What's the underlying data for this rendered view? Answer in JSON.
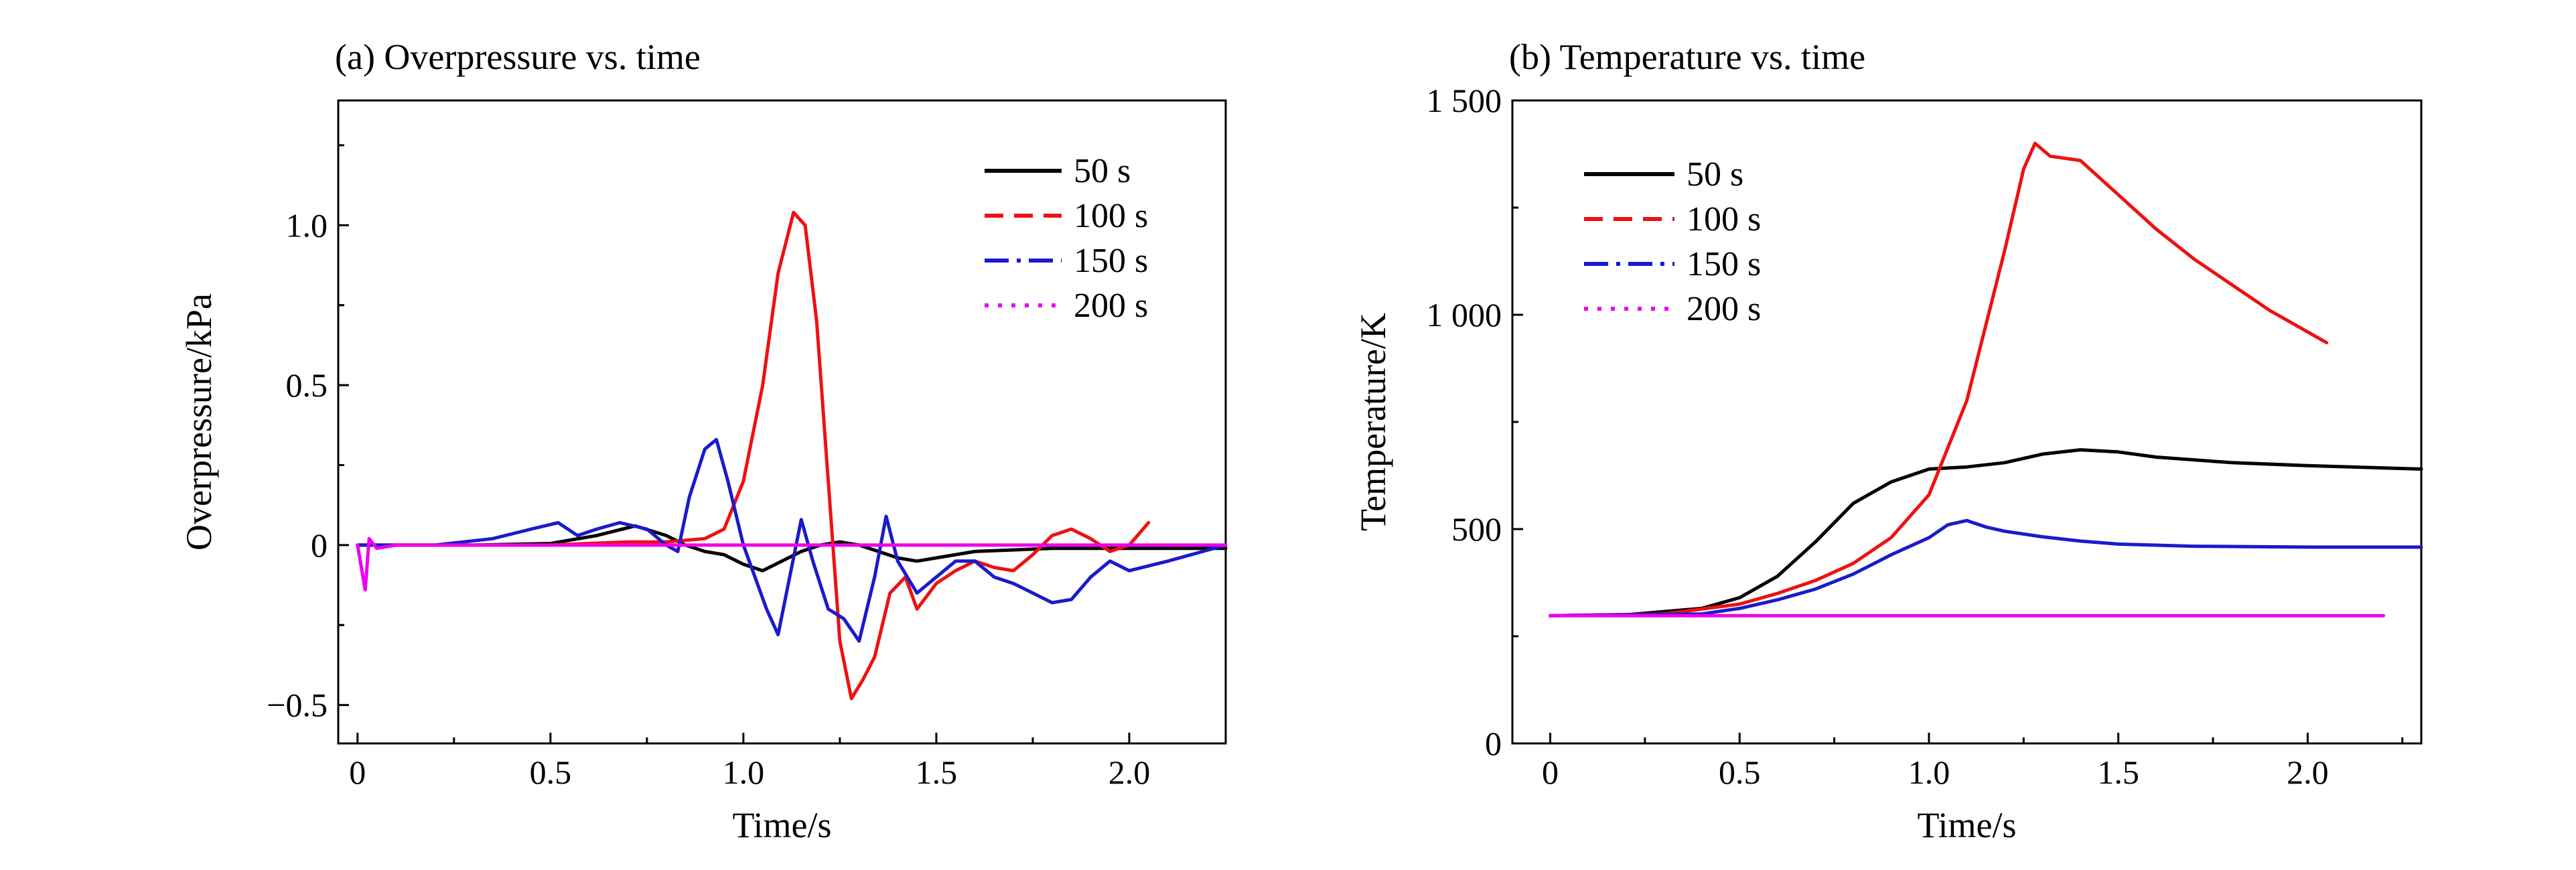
{
  "chart_data": [
    {
      "type": "line",
      "title": "(a) Overpressure vs. time",
      "xlabel": "Time/s",
      "ylabel": "Overpressure/kPa",
      "xlim": [
        -0.05,
        2.25
      ],
      "ylim": [
        -0.62,
        1.39
      ],
      "xticks": [
        0,
        0.5,
        1.0,
        1.5,
        2.0
      ],
      "xtick_labels": [
        "0",
        "0.5",
        "1.0",
        "1.5",
        "2.0"
      ],
      "yticks": [
        -0.5,
        0,
        0.5,
        1.0
      ],
      "ytick_labels": [
        "−0.5",
        "0",
        "0.5",
        "1.0"
      ],
      "legend_position": "top-right",
      "grid": false,
      "series": [
        {
          "name": "50 s",
          "color": "#000000",
          "dash": "solid",
          "points": [
            [
              0,
              0
            ],
            [
              0.3,
              0
            ],
            [
              0.5,
              0.005
            ],
            [
              0.62,
              0.03
            ],
            [
              0.72,
              0.06
            ],
            [
              0.8,
              0.03
            ],
            [
              0.85,
              0.0
            ],
            [
              0.9,
              -0.02
            ],
            [
              0.95,
              -0.03
            ],
            [
              1.0,
              -0.06
            ],
            [
              1.05,
              -0.08
            ],
            [
              1.1,
              -0.05
            ],
            [
              1.15,
              -0.02
            ],
            [
              1.2,
              0.0
            ],
            [
              1.25,
              0.01
            ],
            [
              1.3,
              0.0
            ],
            [
              1.35,
              -0.02
            ],
            [
              1.4,
              -0.04
            ],
            [
              1.45,
              -0.05
            ],
            [
              1.5,
              -0.04
            ],
            [
              1.6,
              -0.02
            ],
            [
              1.8,
              -0.01
            ],
            [
              2.0,
              -0.01
            ],
            [
              2.25,
              -0.01
            ]
          ]
        },
        {
          "name": "100 s",
          "color": "#ee1111",
          "dash": "solid",
          "points": [
            [
              0,
              0
            ],
            [
              0.5,
              0
            ],
            [
              0.7,
              0.01
            ],
            [
              0.8,
              0.01
            ],
            [
              0.9,
              0.02
            ],
            [
              0.95,
              0.05
            ],
            [
              1.0,
              0.2
            ],
            [
              1.05,
              0.5
            ],
            [
              1.09,
              0.85
            ],
            [
              1.13,
              1.04
            ],
            [
              1.16,
              1.0
            ],
            [
              1.19,
              0.7
            ],
            [
              1.22,
              0.2
            ],
            [
              1.25,
              -0.3
            ],
            [
              1.28,
              -0.48
            ],
            [
              1.31,
              -0.42
            ],
            [
              1.34,
              -0.35
            ],
            [
              1.38,
              -0.15
            ],
            [
              1.42,
              -0.1
            ],
            [
              1.45,
              -0.2
            ],
            [
              1.5,
              -0.12
            ],
            [
              1.55,
              -0.08
            ],
            [
              1.6,
              -0.05
            ],
            [
              1.65,
              -0.07
            ],
            [
              1.7,
              -0.08
            ],
            [
              1.75,
              -0.03
            ],
            [
              1.8,
              0.03
            ],
            [
              1.85,
              0.05
            ],
            [
              1.9,
              0.02
            ],
            [
              1.95,
              -0.02
            ],
            [
              2.0,
              0.0
            ],
            [
              2.05,
              0.07
            ]
          ]
        },
        {
          "name": "150 s",
          "color": "#1a1acc",
          "dash": "solid",
          "points": [
            [
              0,
              0
            ],
            [
              0.2,
              0.0
            ],
            [
              0.35,
              0.02
            ],
            [
              0.45,
              0.05
            ],
            [
              0.52,
              0.07
            ],
            [
              0.57,
              0.03
            ],
            [
              0.62,
              0.05
            ],
            [
              0.68,
              0.07
            ],
            [
              0.75,
              0.05
            ],
            [
              0.8,
              0.0
            ],
            [
              0.83,
              -0.02
            ],
            [
              0.86,
              0.15
            ],
            [
              0.9,
              0.3
            ],
            [
              0.93,
              0.33
            ],
            [
              0.96,
              0.2
            ],
            [
              1.0,
              0.0
            ],
            [
              1.03,
              -0.1
            ],
            [
              1.06,
              -0.2
            ],
            [
              1.09,
              -0.28
            ],
            [
              1.12,
              -0.1
            ],
            [
              1.15,
              0.08
            ],
            [
              1.18,
              -0.05
            ],
            [
              1.22,
              -0.2
            ],
            [
              1.26,
              -0.23
            ],
            [
              1.3,
              -0.3
            ],
            [
              1.34,
              -0.1
            ],
            [
              1.37,
              0.09
            ],
            [
              1.4,
              -0.05
            ],
            [
              1.45,
              -0.15
            ],
            [
              1.5,
              -0.1
            ],
            [
              1.55,
              -0.05
            ],
            [
              1.6,
              -0.05
            ],
            [
              1.65,
              -0.1
            ],
            [
              1.7,
              -0.12
            ],
            [
              1.75,
              -0.15
            ],
            [
              1.8,
              -0.18
            ],
            [
              1.85,
              -0.17
            ],
            [
              1.9,
              -0.1
            ],
            [
              1.95,
              -0.05
            ],
            [
              2.0,
              -0.08
            ],
            [
              2.1,
              -0.05
            ],
            [
              2.25,
              0.0
            ]
          ]
        },
        {
          "name": "200 s",
          "color": "#ee00ee",
          "dash": "solid",
          "points": [
            [
              0,
              0
            ],
            [
              0.02,
              -0.14
            ],
            [
              0.03,
              0.02
            ],
            [
              0.05,
              -0.01
            ],
            [
              0.1,
              0
            ],
            [
              2.25,
              0
            ]
          ]
        }
      ]
    },
    {
      "type": "line",
      "title": "(b) Temperature vs. time",
      "xlabel": "Time/s",
      "ylabel": "Temperature/K",
      "xlim": [
        -0.1,
        2.3
      ],
      "ylim": [
        0,
        1500
      ],
      "xticks": [
        0,
        0.5,
        1.0,
        1.5,
        2.0
      ],
      "xtick_labels": [
        "0",
        "0.5",
        "1.0",
        "1.5",
        "2.0"
      ],
      "yticks": [
        0,
        500,
        1000,
        1500
      ],
      "ytick_labels": [
        "0",
        "500",
        "1 000",
        "1 500"
      ],
      "legend_position": "top-left",
      "grid": false,
      "series": [
        {
          "name": "50 s",
          "color": "#000000",
          "dash": "solid",
          "points": [
            [
              0,
              298
            ],
            [
              0.2,
              300
            ],
            [
              0.4,
              315
            ],
            [
              0.5,
              340
            ],
            [
              0.6,
              390
            ],
            [
              0.7,
              470
            ],
            [
              0.8,
              560
            ],
            [
              0.9,
              610
            ],
            [
              1.0,
              640
            ],
            [
              1.1,
              645
            ],
            [
              1.2,
              655
            ],
            [
              1.3,
              675
            ],
            [
              1.4,
              685
            ],
            [
              1.5,
              680
            ],
            [
              1.6,
              668
            ],
            [
              1.8,
              655
            ],
            [
              2.0,
              648
            ],
            [
              2.3,
              640
            ]
          ]
        },
        {
          "name": "100 s",
          "color": "#ee1111",
          "dash": "solid",
          "points": [
            [
              0,
              298
            ],
            [
              0.3,
              302
            ],
            [
              0.5,
              325
            ],
            [
              0.6,
              350
            ],
            [
              0.7,
              380
            ],
            [
              0.8,
              420
            ],
            [
              0.9,
              480
            ],
            [
              1.0,
              580
            ],
            [
              1.1,
              800
            ],
            [
              1.2,
              1150
            ],
            [
              1.25,
              1340
            ],
            [
              1.28,
              1400
            ],
            [
              1.32,
              1370
            ],
            [
              1.4,
              1360
            ],
            [
              1.5,
              1280
            ],
            [
              1.6,
              1200
            ],
            [
              1.7,
              1130
            ],
            [
              1.8,
              1070
            ],
            [
              1.9,
              1010
            ],
            [
              2.0,
              960
            ],
            [
              2.05,
              935
            ]
          ]
        },
        {
          "name": "150 s",
          "color": "#1a1acc",
          "dash": "solid",
          "points": [
            [
              0,
              298
            ],
            [
              0.4,
              302
            ],
            [
              0.5,
              315
            ],
            [
              0.6,
              335
            ],
            [
              0.7,
              360
            ],
            [
              0.8,
              395
            ],
            [
              0.9,
              440
            ],
            [
              1.0,
              480
            ],
            [
              1.05,
              510
            ],
            [
              1.1,
              520
            ],
            [
              1.15,
              505
            ],
            [
              1.2,
              495
            ],
            [
              1.3,
              482
            ],
            [
              1.4,
              472
            ],
            [
              1.5,
              465
            ],
            [
              1.7,
              460
            ],
            [
              2.0,
              458
            ],
            [
              2.3,
              458
            ]
          ]
        },
        {
          "name": "200 s",
          "color": "#ee00ee",
          "dash": "solid",
          "points": [
            [
              0,
              298
            ],
            [
              2.2,
              298
            ]
          ]
        }
      ]
    }
  ]
}
